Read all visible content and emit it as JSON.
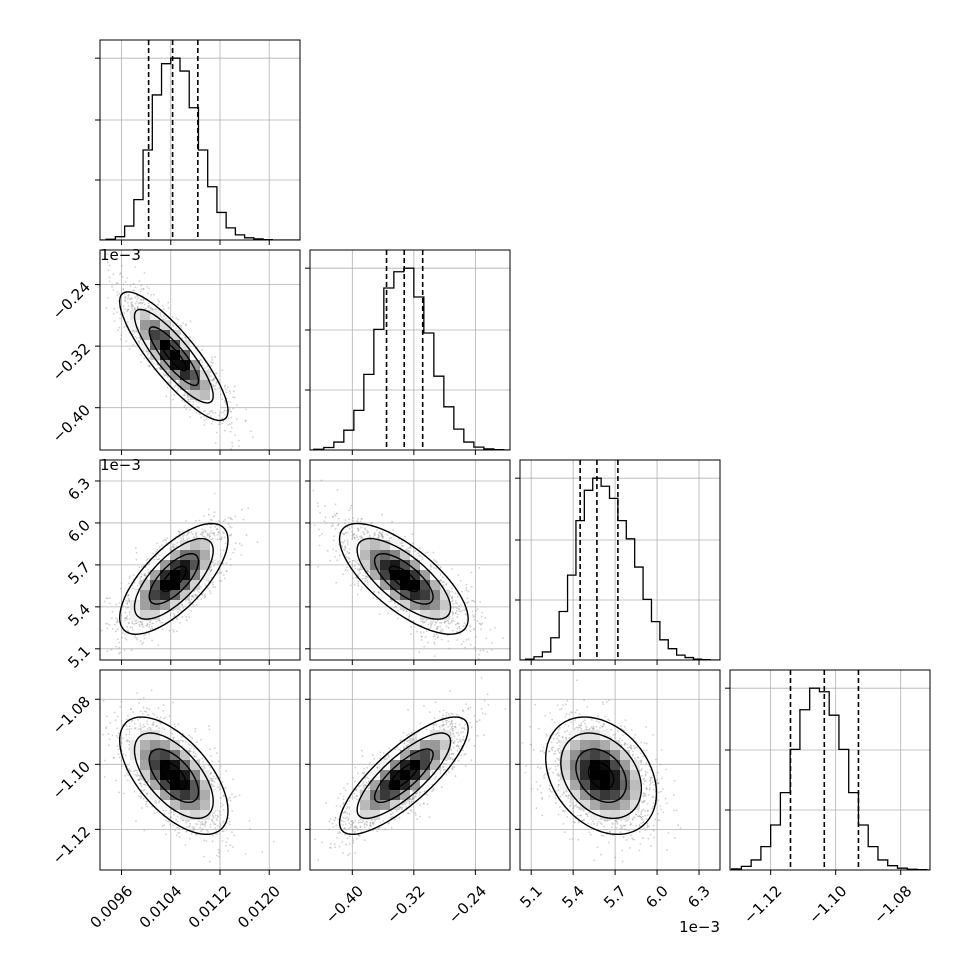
{
  "chart_data": {
    "type": "corner",
    "parameters": [
      {
        "name": "",
        "range": [
          0.00925,
          0.0125
        ],
        "ticks": [
          0.0096,
          0.0104,
          0.0112,
          0.012
        ],
        "tick_labels": [
          "0.0096",
          "0.0104",
          "0.0112",
          "0.0120"
        ],
        "offset_text": "",
        "quantiles": [
          0.01004,
          0.01043,
          0.01084
        ],
        "hist_edges": [
          0.00935,
          0.0095,
          0.00965,
          0.0098,
          0.00995,
          0.0101,
          0.01025,
          0.0104,
          0.01055,
          0.0107,
          0.01085,
          0.011,
          0.01115,
          0.0113,
          0.01145,
          0.0116,
          0.01175,
          0.0119,
          0.01205,
          0.0122
        ],
        "hist_counts": [
          2,
          9,
          38,
          110,
          245,
          395,
          480,
          495,
          460,
          360,
          245,
          145,
          75,
          33,
          14,
          6,
          3,
          1,
          0
        ]
      },
      {
        "name": "",
        "range": [
          -0.455,
          -0.195
        ],
        "ticks": [
          -0.4,
          -0.32,
          -0.24
        ],
        "tick_labels": [
          "−0.40",
          "−0.32",
          "−0.24"
        ],
        "offset_text": "1e−3",
        "quantiles": [
          -0.3555,
          -0.3325,
          -0.3085
        ],
        "hist_edges": [
          -0.45,
          -0.437,
          -0.424,
          -0.411,
          -0.398,
          -0.385,
          -0.372,
          -0.359,
          -0.346,
          -0.333,
          -0.32,
          -0.307,
          -0.294,
          -0.281,
          -0.268,
          -0.255,
          -0.242,
          -0.229,
          -0.216,
          -0.203
        ],
        "hist_counts": [
          2,
          7,
          22,
          55,
          110,
          210,
          335,
          450,
          495,
          505,
          425,
          325,
          205,
          120,
          58,
          22,
          8,
          3,
          1
        ]
      },
      {
        "name": "",
        "range": [
          5.02,
          6.45
        ],
        "ticks": [
          5.1,
          5.4,
          5.7,
          6.0,
          6.3
        ],
        "tick_labels": [
          "5.1",
          "5.4",
          "5.7",
          "6.0",
          "6.3"
        ],
        "offset_text": "1e−3",
        "quantiles": [
          5.45,
          5.57,
          5.72
        ],
        "hist_edges": [
          5.06,
          5.12,
          5.18,
          5.24,
          5.3,
          5.36,
          5.42,
          5.48,
          5.54,
          5.6,
          5.66,
          5.72,
          5.78,
          5.84,
          5.9,
          5.96,
          6.02,
          6.08,
          6.14,
          6.2,
          6.26,
          6.32,
          6.38
        ],
        "hist_counts": [
          2,
          8,
          20,
          55,
          120,
          210,
          345,
          420,
          450,
          430,
          400,
          345,
          300,
          230,
          150,
          95,
          50,
          28,
          12,
          6,
          2,
          1
        ]
      },
      {
        "name": "",
        "range": [
          -1.1325,
          -1.071
        ],
        "ticks": [
          -1.12,
          -1.1,
          -1.08
        ],
        "tick_labels": [
          "−1.12",
          "−1.10",
          "−1.08"
        ],
        "offset_text": "",
        "quantiles": [
          -1.1139,
          -1.1035,
          -1.093
        ],
        "hist_edges": [
          -1.132,
          -1.129,
          -1.126,
          -1.123,
          -1.12,
          -1.117,
          -1.114,
          -1.111,
          -1.108,
          -1.105,
          -1.102,
          -1.099,
          -1.096,
          -1.093,
          -1.09,
          -1.087,
          -1.084,
          -1.081,
          -1.078,
          -1.075,
          -1.072
        ],
        "hist_counts": [
          3,
          10,
          28,
          65,
          125,
          215,
          335,
          445,
          505,
          495,
          430,
          335,
          215,
          125,
          65,
          28,
          12,
          5,
          2,
          1
        ]
      }
    ],
    "pairs": [
      {
        "x": 0,
        "y": 1,
        "mean": [
          0.01045,
          -0.333
        ],
        "sd": [
          0.0004,
          0.038
        ],
        "rho": -0.85
      },
      {
        "x": 0,
        "y": 2,
        "mean": [
          0.01045,
          5.6
        ],
        "sd": [
          0.0004,
          0.18
        ],
        "rho": 0.7
      },
      {
        "x": 1,
        "y": 2,
        "mean": [
          -0.333,
          5.6
        ],
        "sd": [
          0.038,
          0.18
        ],
        "rho": -0.72
      },
      {
        "x": 0,
        "y": 3,
        "mean": [
          0.01045,
          -1.1035
        ],
        "sd": [
          0.0004,
          0.0082
        ],
        "rho": -0.6
      },
      {
        "x": 1,
        "y": 3,
        "mean": [
          -0.333,
          -1.1035
        ],
        "sd": [
          0.038,
          0.0082
        ],
        "rho": 0.8
      },
      {
        "x": 2,
        "y": 3,
        "mean": [
          5.6,
          -1.1035
        ],
        "sd": [
          0.18,
          0.0082
        ],
        "rho": -0.3
      }
    ],
    "grid": true,
    "scatter_color": "#9a9a9a",
    "density_color": "#000000",
    "contour_color": "#000000",
    "quantile_line_style": "dashed"
  }
}
